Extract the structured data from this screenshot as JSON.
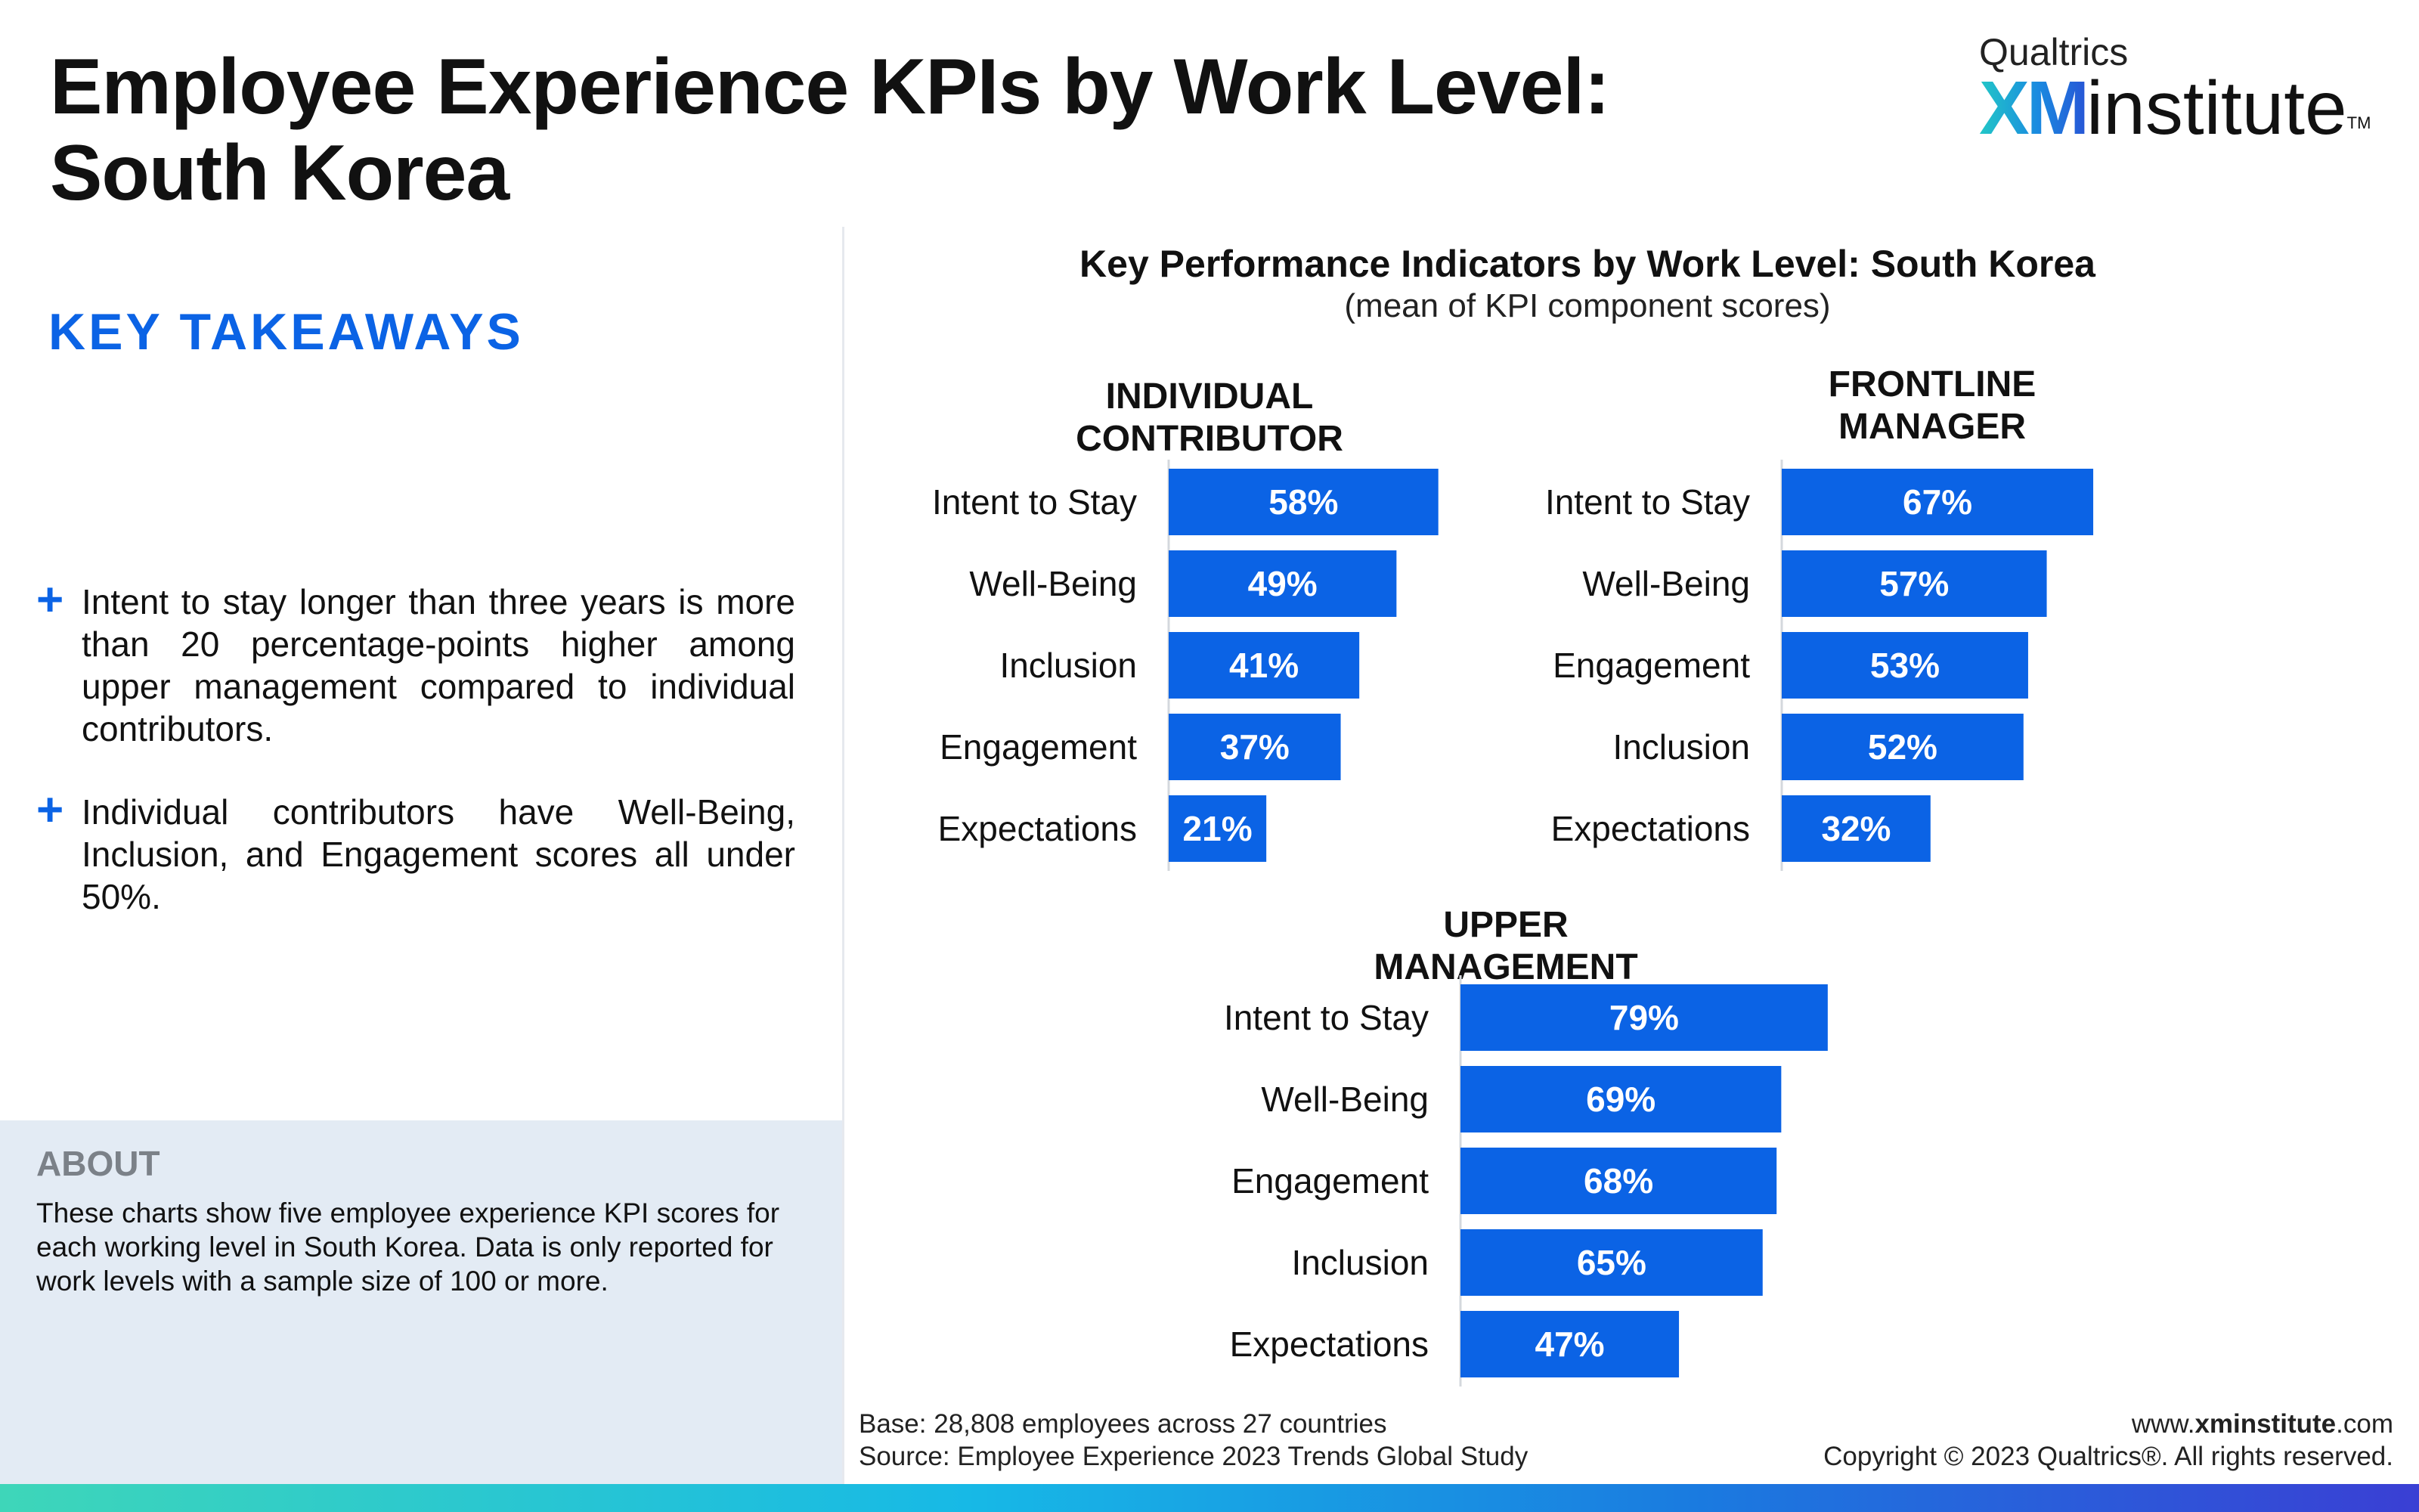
{
  "header": {
    "title_line1": "Employee Experience KPIs by Work Level:",
    "title_line2": "South Korea"
  },
  "logo": {
    "top": "Qualtrics",
    "xm": "XM",
    "institute": "institute",
    "tm": "TM"
  },
  "takeaways": {
    "heading": "KEY TAKEAWAYS",
    "bullets": [
      "Intent to stay longer than three years is more than 20 percentage-points higher among upper management compared to individual contributors.",
      "Individual contributors have Well-Being, Inclusion, and Engagement scores all under 50%."
    ]
  },
  "about": {
    "title": "ABOUT",
    "text": "These charts show five employee experience KPI scores for each working level in South Korea. Data is only reported for work levels with a sample size of 100 or more."
  },
  "footer": {
    "base": "Base: 28,808 employees across 27 countries",
    "source": "Source: Employee Experience 2023 Trends Global Study",
    "url_prefix": "www.",
    "url_bold": "xminstitute",
    "url_suffix": ".com",
    "copyright": "Copyright © 2023 Qualtrics®. All rights reserved."
  },
  "colors": {
    "bar": "#0b63e5",
    "accent": "#0b63e5",
    "about_bg": "#e3ebf4"
  },
  "chart_data": {
    "type": "bar",
    "orientation": "horizontal",
    "title": "Key Performance Indicators by Work Level: South Korea",
    "subtitle": "(mean of KPI component scores)",
    "value_suffix": "%",
    "xlim": [
      0,
      100
    ],
    "panels": [
      {
        "title_lines": [
          "INDIVIDUAL",
          "CONTRIBUTOR"
        ],
        "categories": [
          "Intent to Stay",
          "Well-Being",
          "Inclusion",
          "Engagement",
          "Expectations"
        ],
        "values": [
          58,
          49,
          41,
          37,
          21
        ]
      },
      {
        "title_lines": [
          "FRONTLINE",
          "MANAGER"
        ],
        "categories": [
          "Intent to Stay",
          "Well-Being",
          "Engagement",
          "Inclusion",
          "Expectations"
        ],
        "values": [
          67,
          57,
          53,
          52,
          32
        ]
      },
      {
        "title_lines": [
          "UPPER",
          "MANAGEMENT"
        ],
        "categories": [
          "Intent to Stay",
          "Well-Being",
          "Engagement",
          "Inclusion",
          "Expectations"
        ],
        "values": [
          79,
          69,
          68,
          65,
          47
        ]
      }
    ]
  }
}
